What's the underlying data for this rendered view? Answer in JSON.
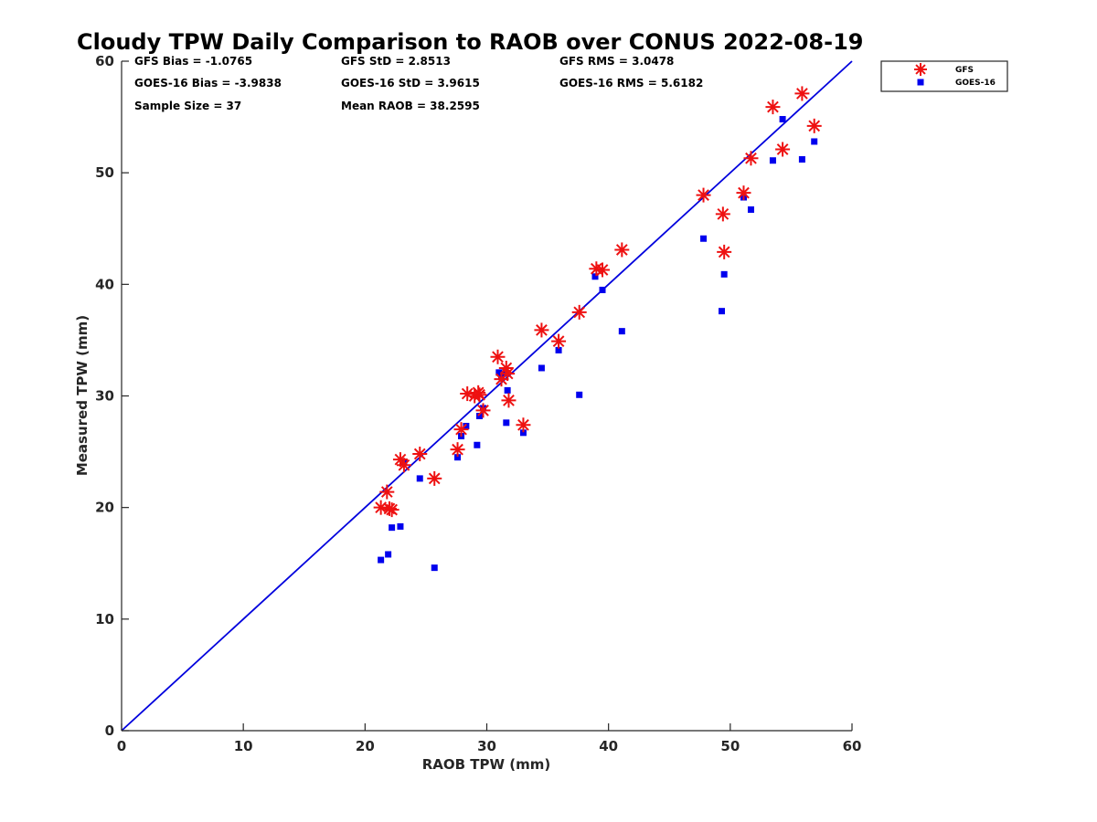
{
  "chart_data": {
    "type": "scatter",
    "title": "Cloudy TPW Daily Comparison to RAOB over CONUS 2022-08-19",
    "xlabel": "RAOB TPW (mm)",
    "ylabel": "Measured TPW (mm)",
    "xlim": [
      0,
      60
    ],
    "ylim": [
      0,
      60
    ],
    "xticks": [
      0,
      10,
      20,
      30,
      40,
      50,
      60
    ],
    "yticks": [
      0,
      10,
      20,
      30,
      40,
      50,
      60
    ],
    "grid": false,
    "legend_position": "top-right, outside plot",
    "reference_line": {
      "x": [
        0,
        60
      ],
      "y": [
        0,
        60
      ],
      "color": "#0000dd"
    },
    "stats": [
      "GFS Bias = -1.0765",
      "GFS StD = 2.8513",
      "GFS RMS = 3.0478",
      "GOES-16 Bias = -3.9838",
      "GOES-16 StD = 3.9615",
      "GOES-16 RMS = 5.6182",
      "Sample Size = 37",
      "Mean RAOB = 38.2595"
    ],
    "series": [
      {
        "name": "GFS",
        "marker": "asterisk",
        "color": "#ee1111",
        "points": [
          [
            21.3,
            20.0
          ],
          [
            21.8,
            21.4
          ],
          [
            22.0,
            19.9
          ],
          [
            22.2,
            19.8
          ],
          [
            22.9,
            24.3
          ],
          [
            23.2,
            23.8
          ],
          [
            24.5,
            24.8
          ],
          [
            25.7,
            22.6
          ],
          [
            27.6,
            25.2
          ],
          [
            27.9,
            27.0
          ],
          [
            28.4,
            30.2
          ],
          [
            29.0,
            30.0
          ],
          [
            29.3,
            30.3
          ],
          [
            29.4,
            30.1
          ],
          [
            29.7,
            28.7
          ],
          [
            30.9,
            33.5
          ],
          [
            31.2,
            31.5
          ],
          [
            31.6,
            32.5
          ],
          [
            31.7,
            32.0
          ],
          [
            31.8,
            29.6
          ],
          [
            33.0,
            27.4
          ],
          [
            34.5,
            35.9
          ],
          [
            35.9,
            34.9
          ],
          [
            37.6,
            37.5
          ],
          [
            39.0,
            41.4
          ],
          [
            39.5,
            41.3
          ],
          [
            41.1,
            43.1
          ],
          [
            47.8,
            48.0
          ],
          [
            49.4,
            46.3
          ],
          [
            49.5,
            42.9
          ],
          [
            51.1,
            48.2
          ],
          [
            51.7,
            51.3
          ],
          [
            53.5,
            55.9
          ],
          [
            54.3,
            52.1
          ],
          [
            55.9,
            57.1
          ],
          [
            56.9,
            54.2
          ]
        ]
      },
      {
        "name": "GOES-16",
        "marker": "square",
        "color": "#0000ee",
        "points": [
          [
            21.3,
            15.3
          ],
          [
            21.9,
            15.8
          ],
          [
            22.2,
            18.2
          ],
          [
            22.9,
            18.3
          ],
          [
            23.2,
            24.1
          ],
          [
            24.5,
            22.6
          ],
          [
            25.7,
            14.6
          ],
          [
            27.6,
            24.5
          ],
          [
            27.9,
            26.4
          ],
          [
            28.3,
            27.3
          ],
          [
            29.2,
            25.6
          ],
          [
            29.4,
            28.2
          ],
          [
            29.7,
            28.9
          ],
          [
            31.0,
            32.1
          ],
          [
            31.2,
            31.7
          ],
          [
            31.5,
            32.0
          ],
          [
            31.6,
            27.6
          ],
          [
            31.7,
            30.5
          ],
          [
            33.0,
            26.7
          ],
          [
            34.5,
            32.5
          ],
          [
            35.9,
            34.1
          ],
          [
            37.6,
            30.1
          ],
          [
            38.9,
            40.7
          ],
          [
            39.5,
            39.5
          ],
          [
            41.1,
            35.8
          ],
          [
            47.8,
            44.1
          ],
          [
            49.3,
            37.6
          ],
          [
            49.5,
            40.9
          ],
          [
            51.1,
            47.8
          ],
          [
            51.7,
            46.7
          ],
          [
            53.5,
            51.1
          ],
          [
            54.3,
            54.8
          ],
          [
            55.9,
            51.2
          ],
          [
            56.9,
            52.8
          ]
        ]
      }
    ]
  }
}
